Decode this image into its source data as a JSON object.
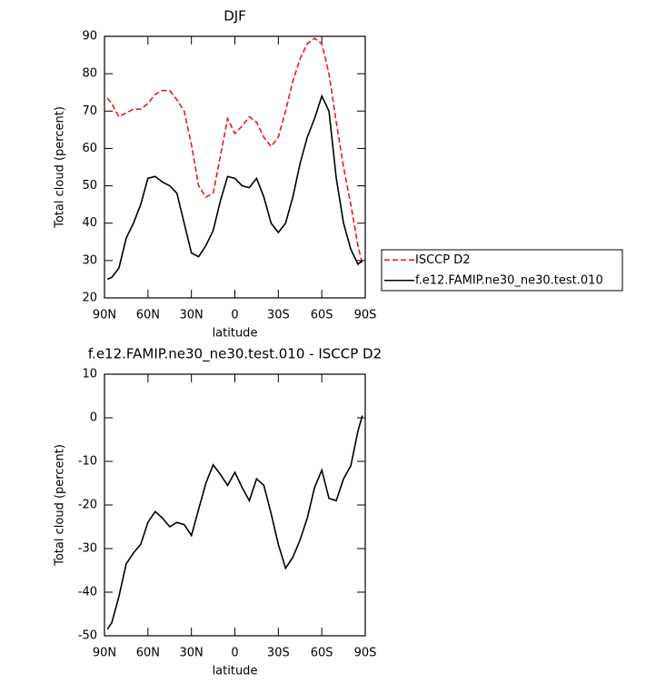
{
  "chart_data": [
    {
      "type": "line",
      "title": "DJF",
      "xlabel": "latitude",
      "ylabel": "Total cloud (percent)",
      "x": [
        88,
        85,
        80,
        75,
        70,
        65,
        60,
        55,
        50,
        45,
        40,
        35,
        30,
        25,
        20,
        15,
        10,
        5,
        0,
        -5,
        -10,
        -15,
        -20,
        -25,
        -30,
        -35,
        -40,
        -45,
        -50,
        -55,
        -60,
        -65,
        -70,
        -75,
        -80,
        -85,
        -88
      ],
      "series": [
        {
          "name": "ISCCP D2",
          "color": "#e8191e",
          "dashed": true,
          "values": [
            73.5,
            72,
            68.5,
            69.5,
            70.5,
            70.5,
            72,
            74.5,
            75.5,
            75.5,
            73,
            70,
            61,
            50,
            47,
            48,
            58,
            68,
            64,
            66,
            68.5,
            67,
            63,
            60.5,
            63,
            70,
            78,
            84,
            88,
            89.5,
            88,
            80,
            67,
            55,
            45,
            34,
            29
          ]
        },
        {
          "name": "f.e12.FAMIP.ne30_ne30.test.010",
          "color": "#000000",
          "dashed": false,
          "values": [
            25,
            25.5,
            28,
            36,
            40,
            45,
            52,
            52.5,
            51,
            50,
            48,
            40,
            32,
            31,
            34,
            38,
            46,
            52.5,
            52,
            50,
            49.5,
            52,
            47,
            40,
            37.5,
            40,
            47,
            56,
            63,
            68,
            74,
            70,
            52,
            40,
            33,
            29,
            30
          ]
        }
      ],
      "xlim": [
        90,
        -90
      ],
      "xticks": [
        {
          "value": 90,
          "label": "90N"
        },
        {
          "value": 60,
          "label": "60N"
        },
        {
          "value": 30,
          "label": "30N"
        },
        0,
        {
          "value": -30,
          "label": "30S"
        },
        {
          "value": -60,
          "label": "60S"
        },
        {
          "value": -90,
          "label": "90S"
        }
      ],
      "ylim": [
        20,
        90
      ],
      "yticks": [
        20,
        30,
        40,
        50,
        60,
        70,
        80,
        90
      ],
      "legend": "right"
    },
    {
      "type": "line",
      "title": "f.e12.FAMIP.ne30_ne30.test.010 - ISCCP D2",
      "xlabel": "latitude",
      "ylabel": "Total cloud (percent)",
      "x": [
        88,
        85,
        80,
        75,
        70,
        65,
        60,
        55,
        50,
        45,
        40,
        35,
        30,
        25,
        20,
        15,
        10,
        5,
        0,
        -5,
        -10,
        -15,
        -20,
        -25,
        -30,
        -35,
        -40,
        -45,
        -50,
        -55,
        -60,
        -65,
        -70,
        -75,
        -80,
        -85,
        -88
      ],
      "series": [
        {
          "color": "#000000",
          "dashed": false,
          "values": [
            -48.5,
            -47,
            -41,
            -33.5,
            -31,
            -29,
            -24,
            -21.5,
            -23,
            -25,
            -24,
            -24.5,
            -27,
            -21,
            -15,
            -10.8,
            -13,
            -15.5,
            -12.5,
            -16,
            -19,
            -14,
            -15.5,
            -22,
            -29,
            -34.5,
            -32,
            -28,
            -23,
            -16,
            -12,
            -18.5,
            -19,
            -14,
            -11,
            -3,
            0.5
          ]
        }
      ],
      "xlim": [
        90,
        -90
      ],
      "xticks": [
        {
          "value": 90,
          "label": "90N"
        },
        {
          "value": 60,
          "label": "60N"
        },
        {
          "value": 30,
          "label": "30N"
        },
        0,
        {
          "value": -30,
          "label": "30S"
        },
        {
          "value": -60,
          "label": "60S"
        },
        {
          "value": -90,
          "label": "90S"
        }
      ],
      "ylim": [
        -50,
        10
      ],
      "yticks": [
        -50,
        -40,
        -30,
        -20,
        -10,
        0,
        10
      ]
    }
  ]
}
